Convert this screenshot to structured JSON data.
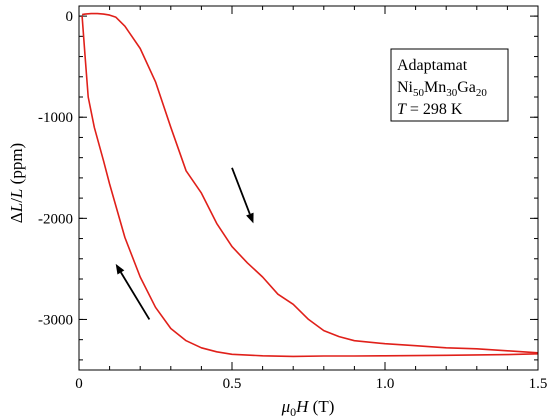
{
  "chart_data": {
    "type": "line",
    "xlim": [
      0,
      1.5
    ],
    "ylim": [
      -3500,
      100
    ],
    "x_ticks": [
      {
        "value": 0,
        "label": "0"
      },
      {
        "value": 0.5,
        "label": "0.5"
      },
      {
        "value": 1.0,
        "label": "1.0"
      },
      {
        "value": 1.5,
        "label": "1.5"
      }
    ],
    "x_minor_step": 0.1,
    "y_ticks": [
      {
        "value": 0,
        "label": "0"
      },
      {
        "value": -1000,
        "label": "-1000"
      },
      {
        "value": -2000,
        "label": "-2000"
      },
      {
        "value": -3000,
        "label": "-3000"
      }
    ],
    "y_minor_step": 200,
    "xlabel": {
      "prefix": "μ",
      "sub": "0",
      "var": "H",
      "unit": " (T)"
    },
    "ylabel": {
      "delta": "Δ",
      "var1": "L",
      "slash": "/",
      "var2": "L",
      "unit": " (ppm)"
    },
    "legend": {
      "position": "top-right",
      "line1": "Adaptamat",
      "line2": [
        {
          "text": "Ni",
          "sub": false
        },
        {
          "text": "50",
          "sub": true
        },
        {
          "text": "Mn",
          "sub": false
        },
        {
          "text": "30",
          "sub": true
        },
        {
          "text": "Ga",
          "sub": false
        },
        {
          "text": "20",
          "sub": true
        }
      ],
      "line3_var": "T",
      "line3_rest": " = 298 K"
    },
    "line_color": "#e0201a",
    "grid": false,
    "series": [
      {
        "x": [
          1.5,
          1.4,
          1.3,
          1.2,
          1.1,
          1.0,
          0.9,
          0.85,
          0.8,
          0.75,
          0.7,
          0.65,
          0.6,
          0.55,
          0.5,
          0.45,
          0.4,
          0.35,
          0.3,
          0.25,
          0.2,
          0.15,
          0.12,
          0.1,
          0.08,
          0.06,
          0.04,
          0.02,
          0.01
        ],
        "y": [
          -3330,
          -3310,
          -3290,
          -3280,
          -3260,
          -3240,
          -3210,
          -3170,
          -3110,
          -3000,
          -2850,
          -2750,
          -2580,
          -2440,
          -2280,
          -2050,
          -1750,
          -1530,
          -1100,
          -650,
          -320,
          -100,
          -10,
          10,
          20,
          25,
          25,
          20,
          15
        ]
      },
      {
        "x": [
          0.01,
          0.02,
          0.03,
          0.05,
          0.08,
          0.1,
          0.15,
          0.2,
          0.25,
          0.3,
          0.35,
          0.4,
          0.45,
          0.5,
          0.6,
          0.7,
          0.8,
          0.9,
          1.0,
          1.2,
          1.4,
          1.5
        ],
        "y": [
          0,
          -400,
          -800,
          -1100,
          -1430,
          -1660,
          -2190,
          -2580,
          -2880,
          -3090,
          -3210,
          -3280,
          -3320,
          -3345,
          -3360,
          -3365,
          -3362,
          -3362,
          -3360,
          -3355,
          -3348,
          -3340
        ]
      }
    ],
    "annotations": [
      {
        "type": "arrow",
        "from": [
          0.5,
          -1500
        ],
        "to": [
          0.57,
          -2050
        ]
      },
      {
        "type": "arrow",
        "from": [
          0.23,
          -3000
        ],
        "to": [
          0.12,
          -2450
        ]
      }
    ]
  }
}
